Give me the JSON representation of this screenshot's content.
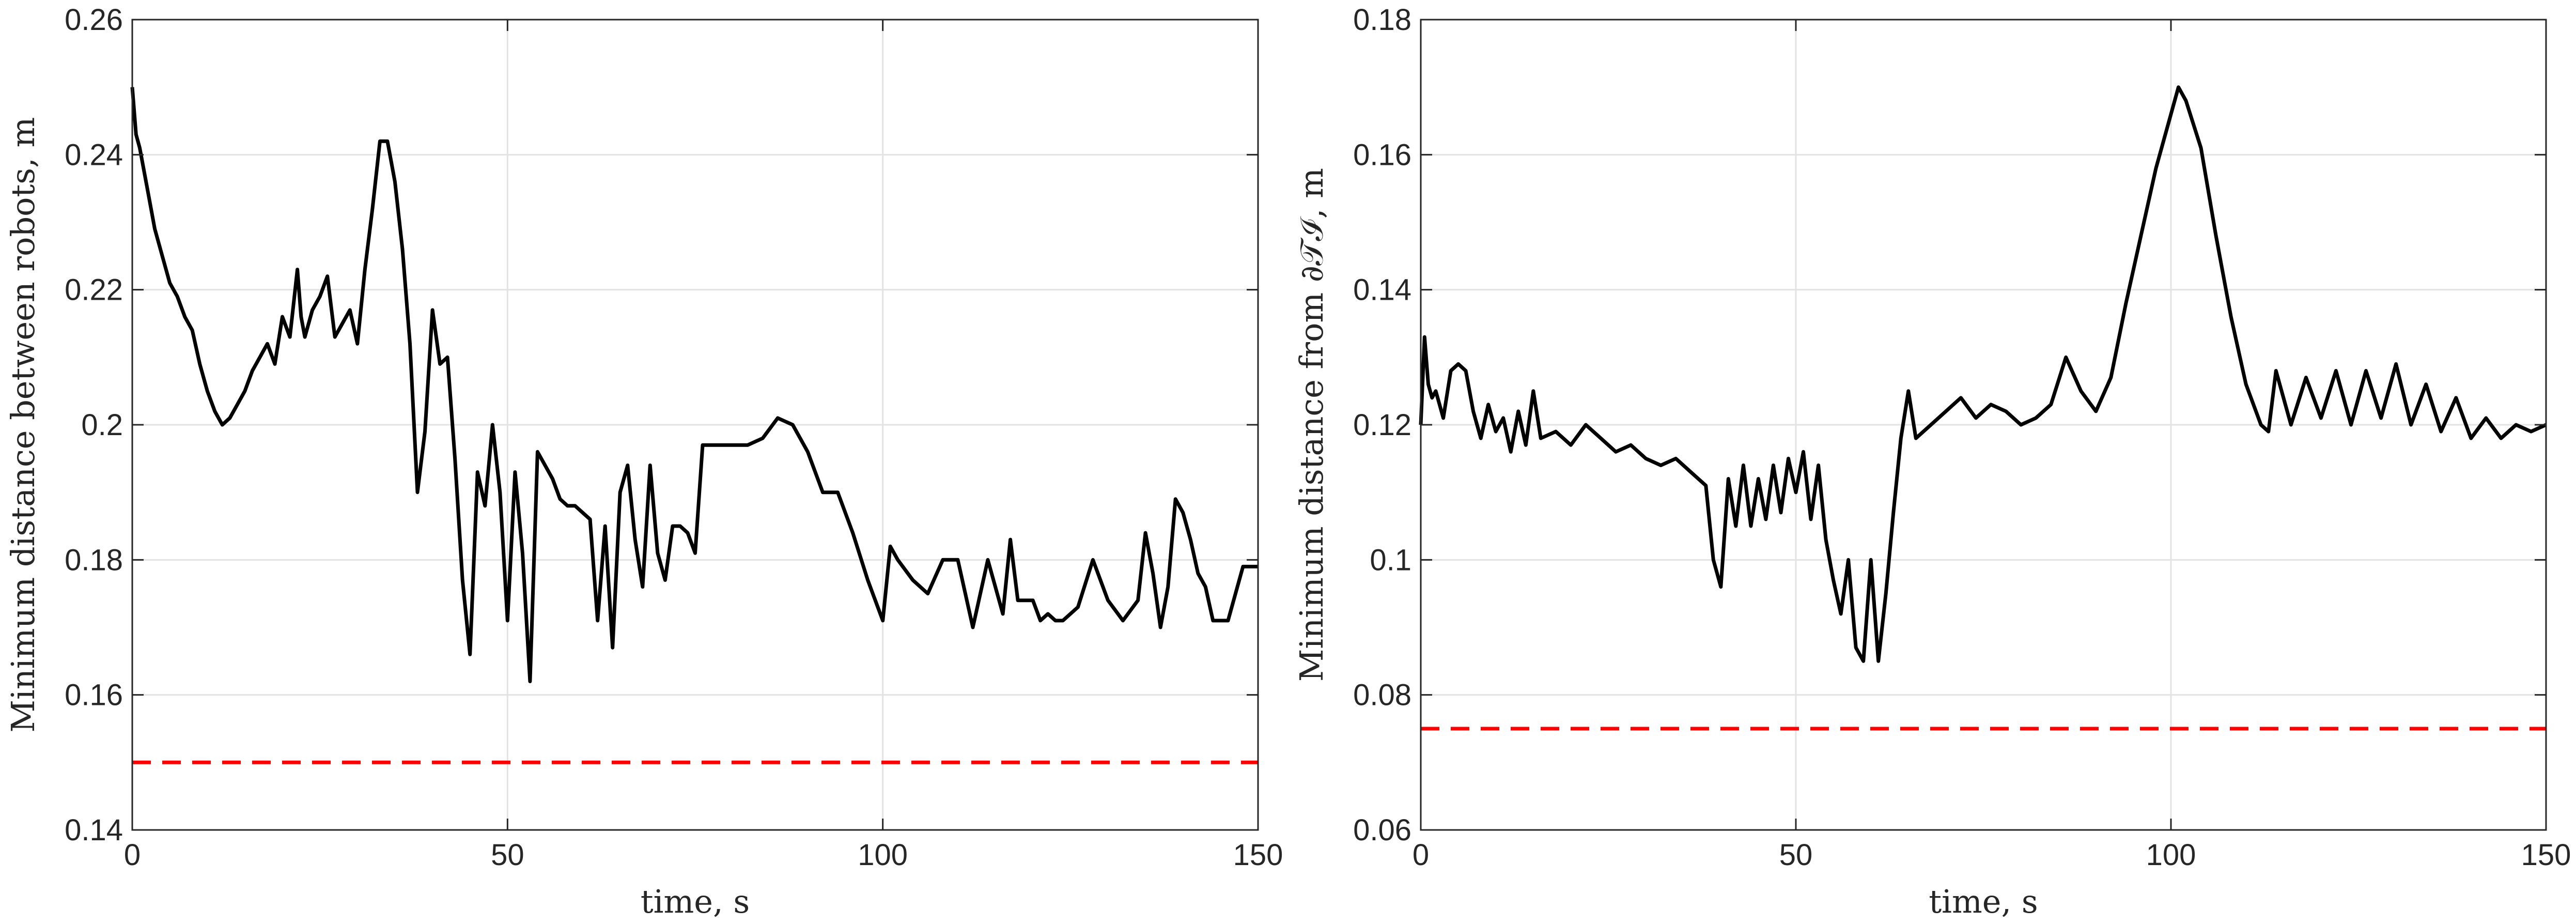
{
  "chart_data": [
    {
      "type": "line",
      "xlabel": "time, s",
      "ylabel": "Minimum distance between robots, m",
      "xlim": [
        0,
        150
      ],
      "ylim": [
        0.14,
        0.26
      ],
      "xticks": [
        0,
        50,
        100,
        150
      ],
      "xtick_labels": [
        "0",
        "50",
        "100",
        "150"
      ],
      "yticks": [
        0.14,
        0.16,
        0.18,
        0.2,
        0.22,
        0.24,
        0.26
      ],
      "ytick_labels": [
        "0.14",
        "0.16",
        "0.18",
        "0.2",
        "0.22",
        "0.24",
        "0.26"
      ],
      "grid": true,
      "series": [
        {
          "color": "#000000",
          "style": "solid",
          "x": [
            0,
            0.5,
            1,
            2,
            3,
            4,
            5,
            6,
            7,
            8,
            9,
            10,
            11,
            12,
            13,
            14,
            15,
            16,
            17,
            18,
            19,
            20,
            21,
            22,
            22.5,
            23,
            24,
            25,
            26,
            27,
            28,
            29,
            30,
            31,
            32,
            33,
            34,
            35,
            36,
            37,
            38,
            39,
            40,
            41,
            42,
            43,
            44,
            45,
            46,
            47,
            48,
            49,
            50,
            51,
            52,
            53,
            54,
            55,
            56,
            57,
            58,
            59,
            60,
            61,
            62,
            63,
            64,
            65,
            66,
            67,
            68,
            69,
            70,
            71,
            72,
            73,
            74,
            75,
            76,
            78,
            80,
            82,
            84,
            86,
            88,
            90,
            92,
            94,
            96,
            98,
            100,
            101,
            102,
            104,
            106,
            108,
            110,
            112,
            114,
            116,
            117,
            118,
            120,
            121,
            122,
            123,
            124,
            126,
            128,
            130,
            132,
            134,
            135,
            136,
            137,
            138,
            139,
            140,
            141,
            142,
            143,
            144,
            146,
            148,
            150
          ],
          "y": [
            0.25,
            0.243,
            0.241,
            0.235,
            0.229,
            0.225,
            0.221,
            0.219,
            0.216,
            0.214,
            0.209,
            0.205,
            0.202,
            0.2,
            0.201,
            0.203,
            0.205,
            0.208,
            0.21,
            0.212,
            0.209,
            0.216,
            0.213,
            0.223,
            0.216,
            0.213,
            0.217,
            0.219,
            0.222,
            0.213,
            0.215,
            0.217,
            0.212,
            0.223,
            0.232,
            0.242,
            0.242,
            0.236,
            0.226,
            0.212,
            0.19,
            0.199,
            0.217,
            0.209,
            0.21,
            0.195,
            0.177,
            0.166,
            0.193,
            0.188,
            0.2,
            0.19,
            0.171,
            0.193,
            0.181,
            0.162,
            0.196,
            0.194,
            0.192,
            0.189,
            0.188,
            0.188,
            0.187,
            0.186,
            0.171,
            0.185,
            0.167,
            0.19,
            0.194,
            0.183,
            0.176,
            0.194,
            0.181,
            0.177,
            0.185,
            0.185,
            0.184,
            0.181,
            0.197,
            0.197,
            0.197,
            0.197,
            0.198,
            0.201,
            0.2,
            0.196,
            0.19,
            0.19,
            0.184,
            0.177,
            0.171,
            0.182,
            0.18,
            0.177,
            0.175,
            0.18,
            0.18,
            0.17,
            0.18,
            0.172,
            0.183,
            0.174,
            0.174,
            0.171,
            0.172,
            0.171,
            0.171,
            0.173,
            0.18,
            0.174,
            0.171,
            0.174,
            0.184,
            0.178,
            0.17,
            0.176,
            0.189,
            0.187,
            0.183,
            0.178,
            0.176,
            0.171,
            0.171,
            0.179,
            0.179
          ]
        },
        {
          "color": "#ff0000",
          "style": "dashed",
          "x": [
            0,
            150
          ],
          "y": [
            0.15,
            0.15
          ]
        }
      ]
    },
    {
      "type": "line",
      "xlabel": "time, s",
      "ylabel": "Minimum distance from ∂𝒯ℐ, m",
      "xlim": [
        0,
        150
      ],
      "ylim": [
        0.06,
        0.18
      ],
      "xticks": [
        0,
        50,
        100,
        150
      ],
      "xtick_labels": [
        "0",
        "50",
        "100",
        "150"
      ],
      "yticks": [
        0.06,
        0.08,
        0.1,
        0.12,
        0.14,
        0.16,
        0.18
      ],
      "ytick_labels": [
        "0.06",
        "0.08",
        "0.1",
        "0.12",
        "0.14",
        "0.16",
        "0.18"
      ],
      "grid": true,
      "series": [
        {
          "color": "#000000",
          "style": "solid",
          "x": [
            0,
            0.5,
            1,
            1.5,
            2,
            3,
            4,
            5,
            6,
            7,
            8,
            9,
            10,
            11,
            12,
            13,
            14,
            15,
            16,
            18,
            20,
            22,
            24,
            26,
            28,
            30,
            32,
            34,
            36,
            38,
            39,
            40,
            41,
            42,
            43,
            44,
            45,
            46,
            47,
            48,
            49,
            50,
            51,
            52,
            53,
            54,
            55,
            56,
            57,
            58,
            59,
            60,
            61,
            62,
            63,
            64,
            65,
            66,
            68,
            70,
            72,
            74,
            76,
            78,
            80,
            82,
            84,
            86,
            88,
            90,
            92,
            94,
            96,
            98,
            100,
            101,
            102,
            104,
            106,
            108,
            110,
            112,
            113,
            114,
            116,
            118,
            120,
            122,
            124,
            126,
            128,
            130,
            132,
            134,
            136,
            138,
            140,
            142,
            144,
            146,
            148,
            150
          ],
          "y": [
            0.12,
            0.133,
            0.126,
            0.124,
            0.125,
            0.121,
            0.128,
            0.129,
            0.128,
            0.122,
            0.118,
            0.123,
            0.119,
            0.121,
            0.116,
            0.122,
            0.117,
            0.125,
            0.118,
            0.119,
            0.117,
            0.12,
            0.118,
            0.116,
            0.117,
            0.115,
            0.114,
            0.115,
            0.113,
            0.111,
            0.1,
            0.096,
            0.112,
            0.105,
            0.114,
            0.105,
            0.112,
            0.106,
            0.114,
            0.107,
            0.115,
            0.11,
            0.116,
            0.106,
            0.114,
            0.103,
            0.097,
            0.092,
            0.1,
            0.087,
            0.085,
            0.1,
            0.085,
            0.095,
            0.107,
            0.118,
            0.125,
            0.118,
            0.12,
            0.122,
            0.124,
            0.121,
            0.123,
            0.122,
            0.12,
            0.121,
            0.123,
            0.13,
            0.125,
            0.122,
            0.127,
            0.138,
            0.148,
            0.158,
            0.166,
            0.17,
            0.168,
            0.161,
            0.148,
            0.136,
            0.126,
            0.12,
            0.119,
            0.128,
            0.12,
            0.127,
            0.121,
            0.128,
            0.12,
            0.128,
            0.121,
            0.129,
            0.12,
            0.126,
            0.119,
            0.124,
            0.118,
            0.121,
            0.118,
            0.12,
            0.119,
            0.12
          ]
        },
        {
          "color": "#ff0000",
          "style": "dashed",
          "x": [
            0,
            150
          ],
          "y": [
            0.075,
            0.075
          ]
        }
      ]
    }
  ]
}
